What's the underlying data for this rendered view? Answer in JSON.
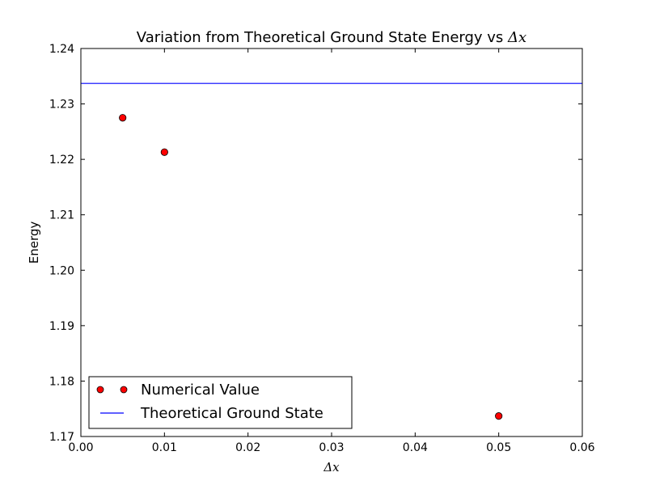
{
  "chart_data": {
    "type": "scatter",
    "title_text": "Variation from Theoretical Ground State Energy vs ",
    "title_math": "Δx",
    "xlabel": "Δx",
    "ylabel": "Energy",
    "xlim": [
      0.0,
      0.06
    ],
    "ylim": [
      1.17,
      1.24
    ],
    "xticks": [
      0.0,
      0.01,
      0.02,
      0.03,
      0.04,
      0.05,
      0.06
    ],
    "xtick_labels": [
      "0.00",
      "0.01",
      "0.02",
      "0.03",
      "0.04",
      "0.05",
      "0.06"
    ],
    "yticks": [
      1.17,
      1.18,
      1.19,
      1.2,
      1.21,
      1.22,
      1.23,
      1.24
    ],
    "ytick_labels": [
      "1.17",
      "1.18",
      "1.19",
      "1.20",
      "1.21",
      "1.22",
      "1.23",
      "1.24"
    ],
    "grid": false,
    "legend_position": "lower-left",
    "series": [
      {
        "name": "Numerical Value",
        "kind": "points",
        "color": "#ff0000",
        "x": [
          0.005,
          0.01,
          0.05
        ],
        "y": [
          1.2275,
          1.2213,
          1.1737
        ]
      },
      {
        "name": "Theoretical Ground State",
        "kind": "hline",
        "color": "#0000ff",
        "y": 1.2337
      }
    ]
  }
}
